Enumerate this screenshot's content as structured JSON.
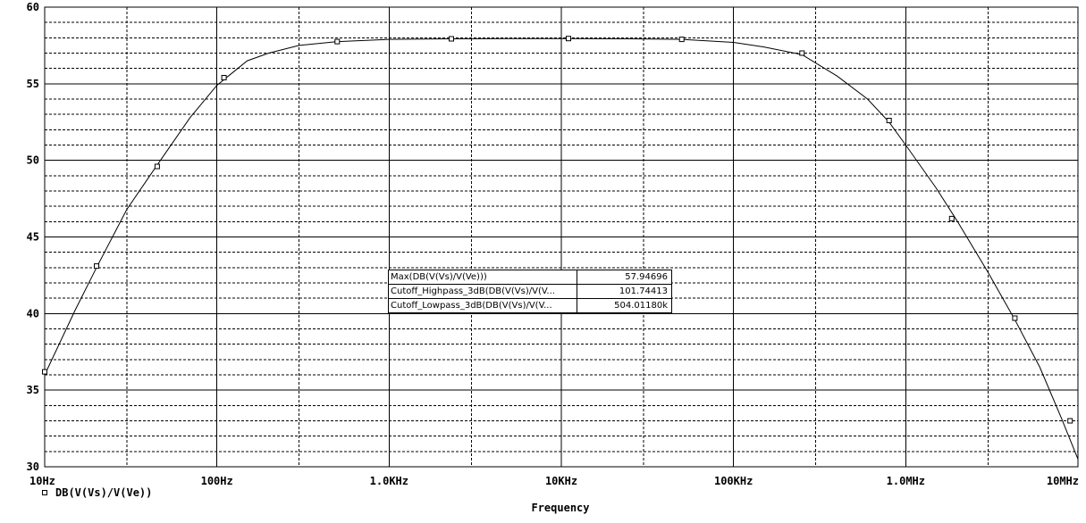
{
  "chart_data": {
    "type": "line",
    "xlabel": "Frequency",
    "x_scale": "log",
    "xlim": [
      10,
      10000000
    ],
    "ylim": [
      30,
      60
    ],
    "grid": true,
    "x_ticks": [
      {
        "value": 10,
        "label": "10Hz"
      },
      {
        "value": 100,
        "label": "100Hz"
      },
      {
        "value": 1000,
        "label": "1.0KHz"
      },
      {
        "value": 10000,
        "label": "10KHz"
      },
      {
        "value": 100000,
        "label": "100KHz"
      },
      {
        "value": 1000000,
        "label": "1.0MHz"
      },
      {
        "value": 10000000,
        "label": "10MHz"
      }
    ],
    "y_ticks": [
      30,
      35,
      40,
      45,
      50,
      55,
      60
    ],
    "series": [
      {
        "name": "DB(V(Vs)/V(Ve))",
        "marker": "square",
        "x": [
          10,
          15,
          20,
          30,
          45,
          70,
          100,
          150,
          200,
          300,
          500,
          1000,
          2300,
          5000,
          10000,
          25000,
          50000,
          100000,
          150000,
          250000,
          400000,
          600000,
          800000,
          1000000,
          1500000,
          2000000,
          3000000,
          4300000,
          6000000,
          8000000,
          10000000
        ],
        "y": [
          36.0,
          40.2,
          43.0,
          46.8,
          49.7,
          52.8,
          54.9,
          56.5,
          57.0,
          57.5,
          57.75,
          57.9,
          57.93,
          57.95,
          57.95,
          57.93,
          57.9,
          57.7,
          57.4,
          56.9,
          55.5,
          54.0,
          52.5,
          51.0,
          48.2,
          46.0,
          42.7,
          39.6,
          36.5,
          33.2,
          30.5
        ],
        "markers_x": [
          10,
          20,
          45,
          110,
          500,
          2300,
          11000,
          50000,
          250000,
          800000,
          1850000,
          4300000,
          9000000
        ],
        "markers_y": [
          36.2,
          43.1,
          49.6,
          55.4,
          57.75,
          57.93,
          57.95,
          57.9,
          57.0,
          52.6,
          46.2,
          39.7,
          33.0
        ]
      }
    ]
  },
  "measurements": [
    {
      "name": "Max(DB(V(Vs)/V(Ve)))",
      "value": "57.94696"
    },
    {
      "name": "Cutoff_Highpass_3dB(DB(V(Vs)/V(V...",
      "value": "101.74413"
    },
    {
      "name": "Cutoff_Lowpass_3dB(DB(V(Vs)/V(V...",
      "value": "504.01180k"
    }
  ]
}
